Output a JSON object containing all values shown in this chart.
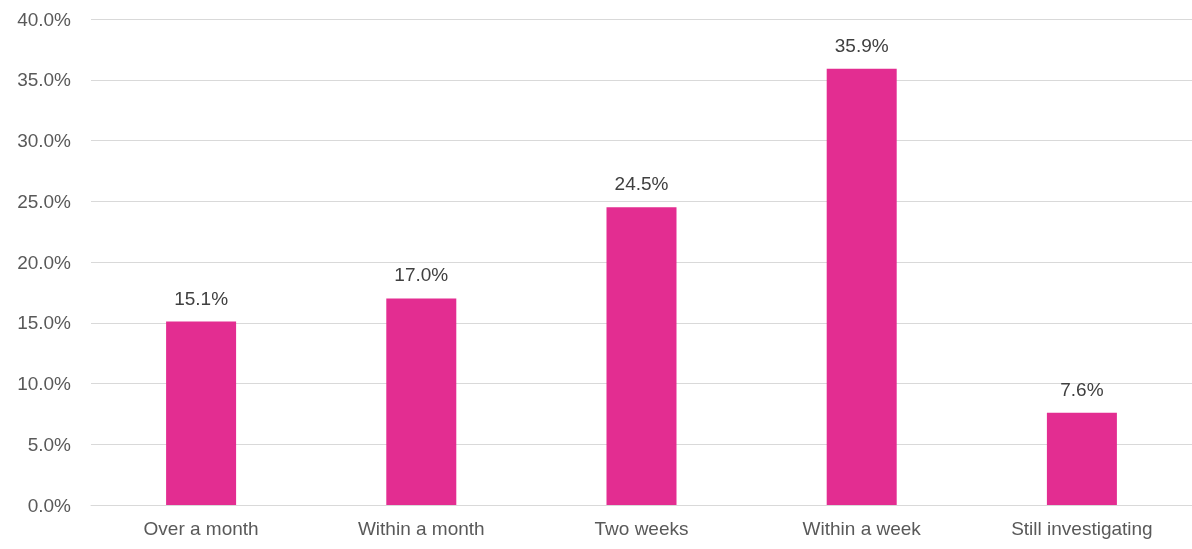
{
  "chart_data": {
    "type": "bar",
    "categories": [
      "Over a month",
      "Within a month",
      "Two weeks",
      "Within a week",
      "Still investigating"
    ],
    "values": [
      15.1,
      17.0,
      24.5,
      35.9,
      7.6
    ],
    "value_labels": [
      "15.1%",
      "17.0%",
      "24.5%",
      "35.9%",
      "7.6%"
    ],
    "color": "#e32d91",
    "ylim": [
      0,
      40
    ],
    "yticks": [
      {
        "value": 0,
        "label": "0.0%"
      },
      {
        "value": 5,
        "label": "5.0%"
      },
      {
        "value": 10,
        "label": "10.0%"
      },
      {
        "value": 15,
        "label": "15.0%"
      },
      {
        "value": 20,
        "label": "20.0%"
      },
      {
        "value": 25,
        "label": "25.0%"
      },
      {
        "value": 30,
        "label": "30.0%"
      },
      {
        "value": 35,
        "label": "35.0%"
      },
      {
        "value": 40,
        "label": "40.0%"
      }
    ],
    "grid": "y"
  }
}
